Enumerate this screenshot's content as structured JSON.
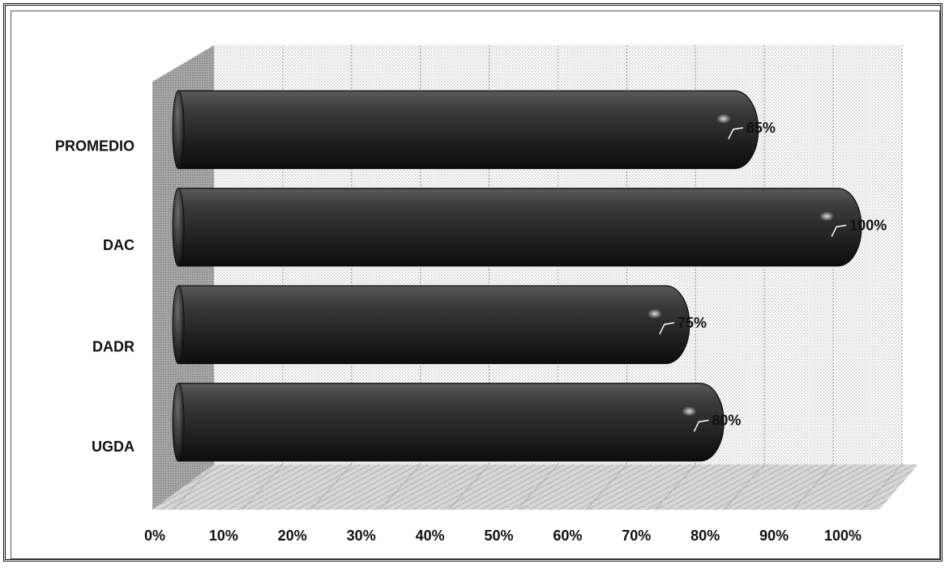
{
  "chart_data": {
    "type": "bar",
    "orientation": "horizontal",
    "categories": [
      "PROMEDIO",
      "DAC",
      "DADR",
      "UGDA"
    ],
    "values": [
      85,
      100,
      75,
      80
    ],
    "data_labels": [
      "85%",
      "100%",
      "75%",
      "80%"
    ],
    "xlim": [
      0,
      100
    ],
    "x_ticks": [
      "0%",
      "10%",
      "20%",
      "30%",
      "40%",
      "50%",
      "60%",
      "70%",
      "80%",
      "90%",
      "100%"
    ],
    "grid": true,
    "legend": "none",
    "title": "",
    "xlabel": "",
    "ylabel": "",
    "bar_color": "#2b2b2b"
  }
}
